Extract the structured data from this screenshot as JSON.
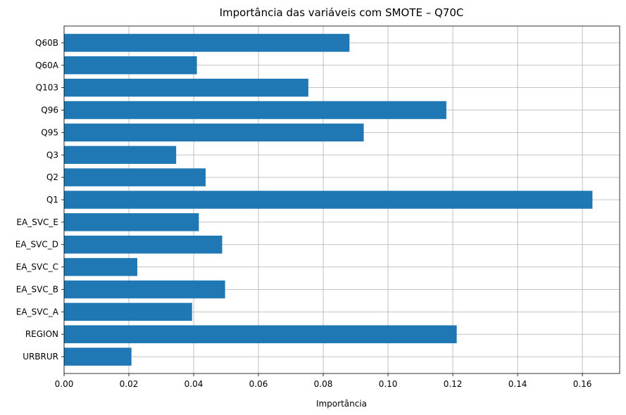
{
  "chart_data": {
    "type": "bar",
    "orientation": "horizontal",
    "title": "Importância das variáveis com SMOTE – Q70C",
    "xlabel": "Importância",
    "ylabel": "",
    "categories": [
      "URBRUR",
      "REGION",
      "EA_SVC_A",
      "EA_SVC_B",
      "EA_SVC_C",
      "EA_SVC_D",
      "EA_SVC_E",
      "Q1",
      "Q2",
      "Q3",
      "Q95",
      "Q96",
      "Q103",
      "Q60A",
      "Q60B"
    ],
    "values": [
      0.0208,
      0.1212,
      0.0395,
      0.0497,
      0.0226,
      0.0488,
      0.0416,
      0.1631,
      0.0437,
      0.0346,
      0.0925,
      0.118,
      0.0754,
      0.041,
      0.0881
    ],
    "xlim": [
      0,
      0.1715
    ],
    "xticks": [
      0.0,
      0.02,
      0.04,
      0.06,
      0.08,
      0.1,
      0.12,
      0.14,
      0.16
    ],
    "xtick_labels": [
      "0.00",
      "0.02",
      "0.04",
      "0.06",
      "0.08",
      "0.10",
      "0.12",
      "0.14",
      "0.16"
    ],
    "grid": true,
    "bar_color": "#1f77b4"
  }
}
